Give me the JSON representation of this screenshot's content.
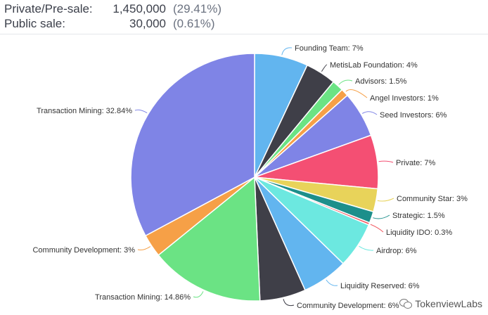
{
  "header": {
    "rows": [
      {
        "label": "Private/Pre-sale:",
        "amount": "1,450,000",
        "percent": "(29.41%)"
      },
      {
        "label": "Public sale:",
        "amount": "30,000",
        "percent": "(0.61%)"
      }
    ]
  },
  "watermark": {
    "text": "TokenviewLabs"
  },
  "chart_data": {
    "type": "pie",
    "title": "",
    "start": "12 o'clock",
    "direction": "clockwise",
    "slices": [
      {
        "label": "Founding Team: 7%",
        "value": 7,
        "color": "#62b5ef"
      },
      {
        "label": "MetisLab Foundation: 4%",
        "value": 4,
        "color": "#3f3f48"
      },
      {
        "label": "Advisors: 1.5%",
        "value": 1.5,
        "color": "#6be384"
      },
      {
        "label": "Angel Investors: 1%",
        "value": 1,
        "color": "#f6a047"
      },
      {
        "label": "Seed Investors: 6%",
        "value": 6,
        "color": "#7f84e6"
      },
      {
        "label": "Private: 7%",
        "value": 7,
        "color": "#f44f73"
      },
      {
        "label": "Community Star: 3%",
        "value": 3,
        "color": "#e8d35a"
      },
      {
        "label": "Strategic: 1.5%",
        "value": 1.5,
        "color": "#1d8f8b"
      },
      {
        "label": "Liquidity IDO: 0.3%",
        "value": 0.3,
        "color": "#f15c64"
      },
      {
        "label": "Airdrop: 6%",
        "value": 6,
        "color": "#6ce8e0"
      },
      {
        "label": "Liquidity Reserved: 6%",
        "value": 6,
        "color": "#62b5ef"
      },
      {
        "label": "Community Development: 6%",
        "value": 6,
        "color": "#3f3f48"
      },
      {
        "label": "Transaction Mining: 14.86%",
        "value": 14.86,
        "color": "#6be384"
      },
      {
        "label": "Community Development: 3%",
        "value": 3,
        "color": "#f6a047"
      },
      {
        "label": "Transaction Mining: 32.84%",
        "value": 32.84,
        "color": "#7f84e6"
      }
    ]
  }
}
